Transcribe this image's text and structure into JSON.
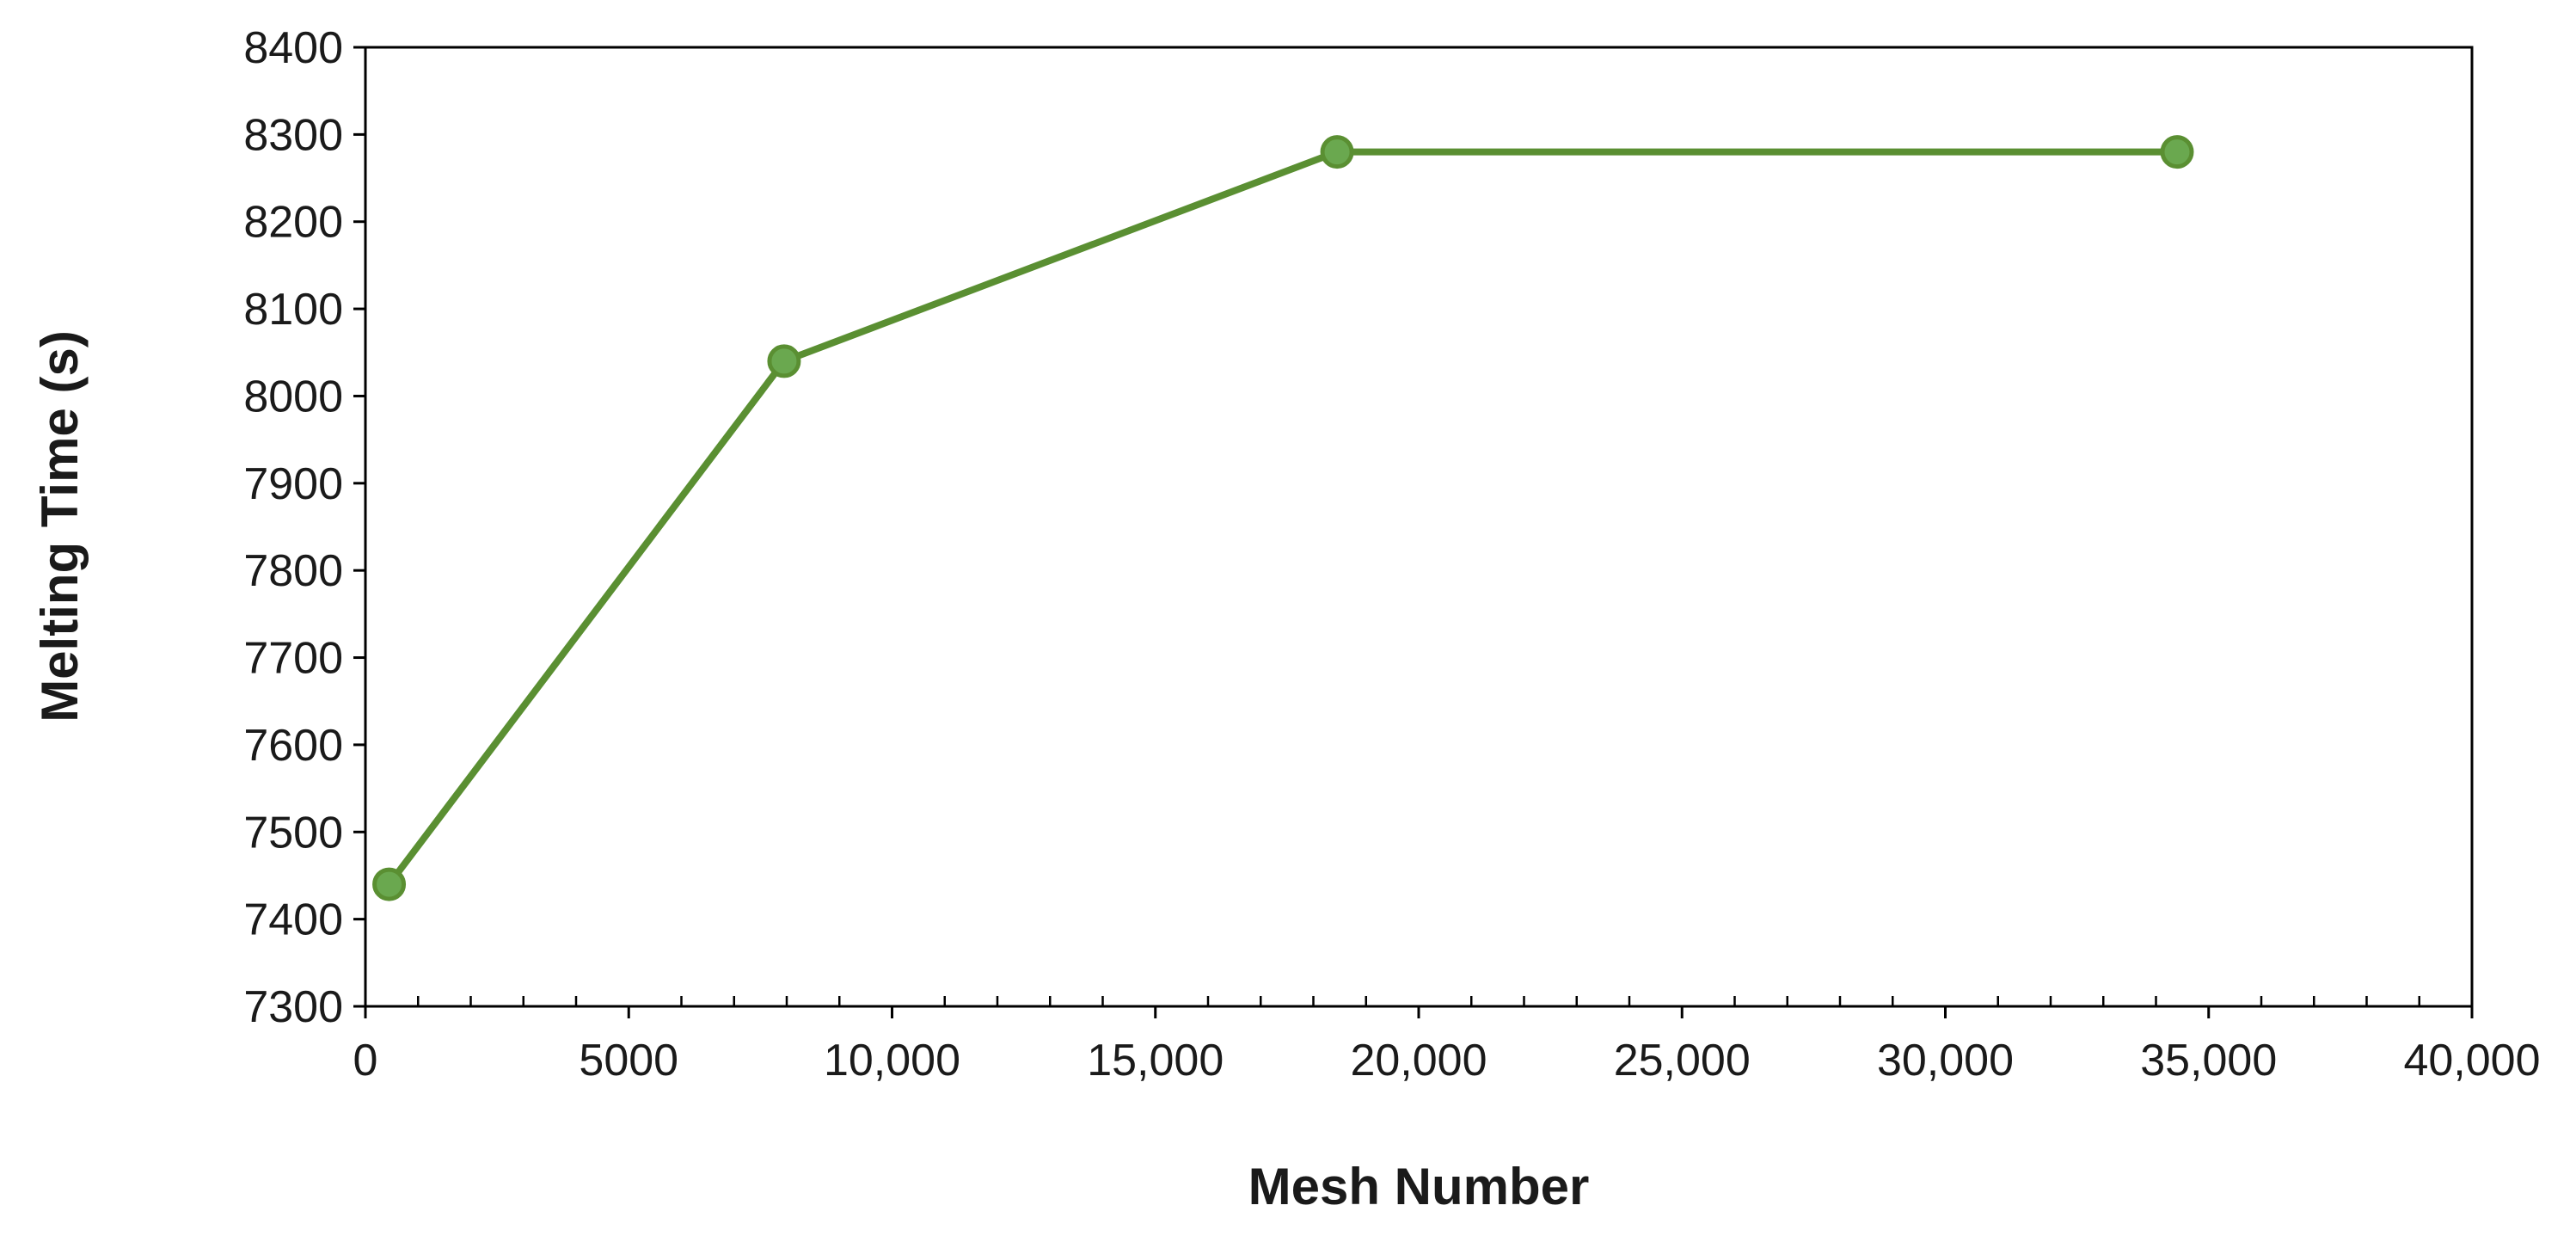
{
  "chart_data": {
    "type": "line",
    "title": "",
    "xlabel": "Mesh Number",
    "ylabel": "Melting Time (s)",
    "xlim": [
      0,
      40000
    ],
    "ylim": [
      7300,
      8400
    ],
    "x_ticks": [
      0,
      5000,
      10000,
      15000,
      20000,
      25000,
      30000,
      35000,
      40000
    ],
    "x_tick_labels": [
      "0",
      "5000",
      "10,000",
      "15,000",
      "20,000",
      "25,000",
      "30,000",
      "35,000",
      "40,000"
    ],
    "y_ticks": [
      7300,
      7400,
      7500,
      7600,
      7700,
      7800,
      7900,
      8000,
      8100,
      8200,
      8300,
      8400
    ],
    "y_tick_labels": [
      "7300",
      "7400",
      "7500",
      "7600",
      "7700",
      "7800",
      "7900",
      "8000",
      "8100",
      "8200",
      "8300",
      "8400"
    ],
    "grid": false,
    "legend": "none",
    "series": [
      {
        "x": [
          450,
          7950,
          18450,
          34400
        ],
        "y": [
          7440,
          8040,
          8280,
          8280
        ],
        "color": "#5a8f32",
        "marker_color": "#6aa84f"
      }
    ]
  }
}
